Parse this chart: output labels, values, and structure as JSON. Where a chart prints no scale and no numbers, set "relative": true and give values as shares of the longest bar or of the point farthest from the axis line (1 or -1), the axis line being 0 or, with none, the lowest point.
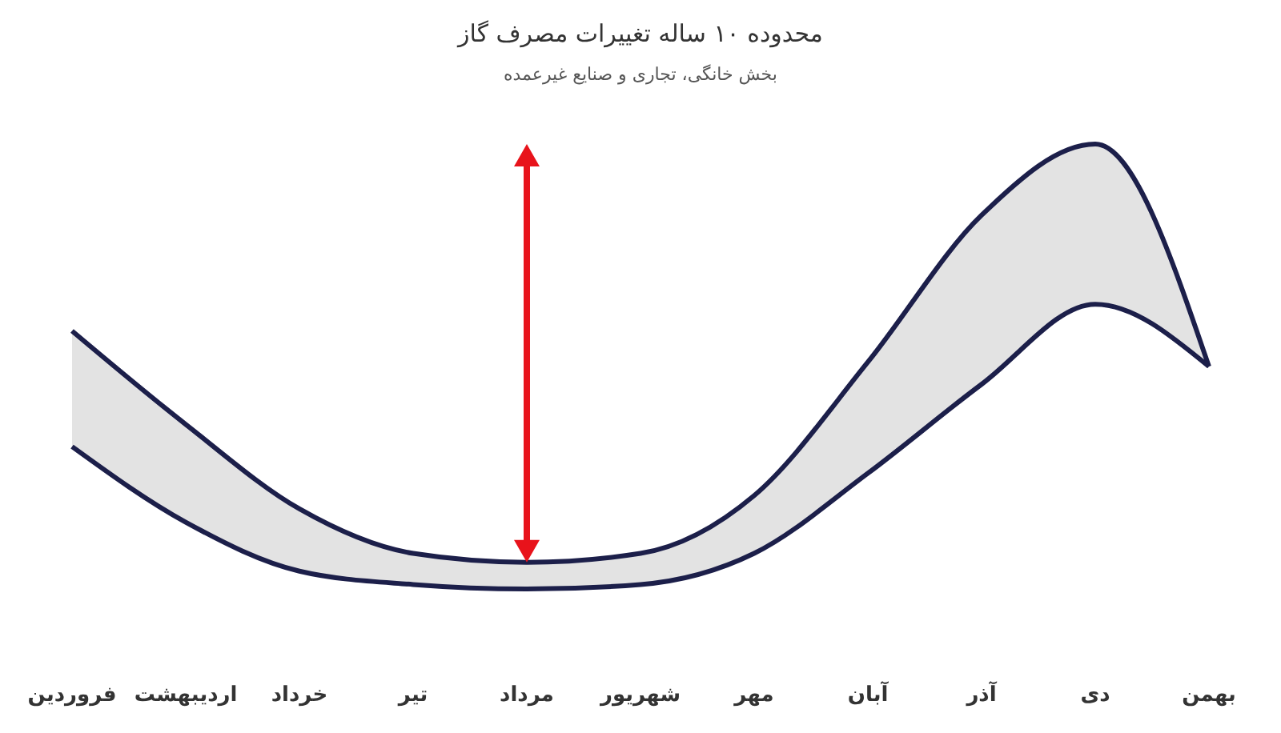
{
  "chart_data": {
    "type": "line",
    "title": "محدوده ۱۰ ساله تغییرات مصرف گاز",
    "subtitle": "بخش خانگی، تجاری و صنایع غیرعمده",
    "relative": true,
    "categories": [
      "فروردین",
      "اردیبهشت",
      "خرداد",
      "تیر",
      "مرداد",
      "شهریور",
      "مهر",
      "آبان",
      "آذر",
      "دی",
      "بهمن"
    ],
    "series": [
      {
        "color": "#1c1f4a",
        "values": [
          0.58,
          0.37,
          0.18,
          0.08,
          0.06,
          0.08,
          0.21,
          0.51,
          0.84,
          1.0,
          0.5
        ],
        "lower": [
          0.32,
          0.15,
          0.04,
          0.01,
          0,
          0.01,
          0.08,
          0.26,
          0.46,
          0.64,
          0.5
        ],
        "upper": [
          0.58,
          0.37,
          0.18,
          0.08,
          0.06,
          0.08,
          0.21,
          0.51,
          0.84,
          1.0,
          0.5
        ]
      },
      {
        "color": "#1c1f4a",
        "values": [
          0.32,
          0.15,
          0.04,
          0.01,
          0,
          0.01,
          0.08,
          0.26,
          0.46,
          0.64,
          0.5
        ]
      }
    ],
    "marker": "none",
    "line_style": "solid"
  }
}
